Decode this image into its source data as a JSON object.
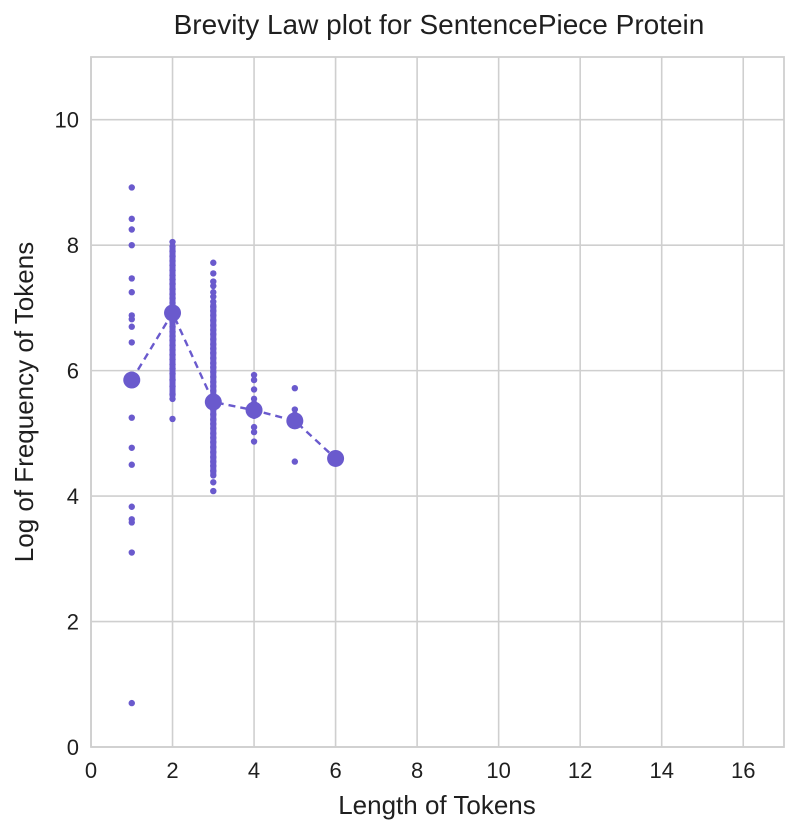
{
  "chart_data": {
    "type": "scatter",
    "title": "Brevity Law plot for SentencePiece Protein",
    "xlabel": "Length of Tokens",
    "ylabel": "Log of Frequency of Tokens",
    "xlim": [
      0,
      17
    ],
    "ylim": [
      0,
      11
    ],
    "xticks": [
      0,
      2,
      4,
      6,
      8,
      10,
      12,
      14,
      16
    ],
    "yticks": [
      0,
      2,
      4,
      6,
      8,
      10
    ],
    "grid": true,
    "color": "#6a5acd",
    "series": [
      {
        "name": "tokens",
        "kind": "scatter",
        "points": [
          [
            1,
            8.92
          ],
          [
            1,
            8.42
          ],
          [
            1,
            8.25
          ],
          [
            1,
            8.0
          ],
          [
            1,
            7.47
          ],
          [
            1,
            7.25
          ],
          [
            1,
            6.88
          ],
          [
            1,
            6.82
          ],
          [
            1,
            6.7
          ],
          [
            1,
            6.45
          ],
          [
            1,
            5.92
          ],
          [
            1,
            5.85
          ],
          [
            1,
            5.25
          ],
          [
            1,
            4.77
          ],
          [
            1,
            4.5
          ],
          [
            1,
            3.83
          ],
          [
            1,
            3.63
          ],
          [
            1,
            3.58
          ],
          [
            1,
            3.1
          ],
          [
            1,
            0.7
          ],
          [
            2,
            8.05
          ],
          [
            2,
            7.98
          ],
          [
            2,
            7.9
          ],
          [
            2,
            7.82
          ],
          [
            2,
            7.75
          ],
          [
            2,
            7.68
          ],
          [
            2,
            7.6
          ],
          [
            2,
            7.52
          ],
          [
            2,
            7.45
          ],
          [
            2,
            7.38
          ],
          [
            2,
            7.3
          ],
          [
            2,
            7.22
          ],
          [
            2,
            7.15
          ],
          [
            2,
            7.08
          ],
          [
            2,
            7.0
          ],
          [
            2,
            6.93
          ],
          [
            2,
            6.85
          ],
          [
            2,
            6.78
          ],
          [
            2,
            6.7
          ],
          [
            2,
            6.62
          ],
          [
            2,
            6.55
          ],
          [
            2,
            6.48
          ],
          [
            2,
            6.4
          ],
          [
            2,
            6.33
          ],
          [
            2,
            6.25
          ],
          [
            2,
            6.18
          ],
          [
            2,
            6.1
          ],
          [
            2,
            6.03
          ],
          [
            2,
            5.95
          ],
          [
            2,
            5.85
          ],
          [
            2,
            5.75
          ],
          [
            2,
            5.62
          ],
          [
            2,
            5.55
          ],
          [
            2,
            5.23
          ],
          [
            3,
            7.72
          ],
          [
            3,
            7.55
          ],
          [
            3,
            7.42
          ],
          [
            3,
            7.35
          ],
          [
            3,
            7.25
          ],
          [
            3,
            7.18
          ],
          [
            3,
            7.1
          ],
          [
            3,
            7.02
          ],
          [
            3,
            6.95
          ],
          [
            3,
            6.88
          ],
          [
            3,
            6.8
          ],
          [
            3,
            6.72
          ],
          [
            3,
            6.65
          ],
          [
            3,
            6.58
          ],
          [
            3,
            6.5
          ],
          [
            3,
            6.42
          ],
          [
            3,
            6.35
          ],
          [
            3,
            6.28
          ],
          [
            3,
            6.2
          ],
          [
            3,
            6.12
          ],
          [
            3,
            6.05
          ],
          [
            3,
            5.98
          ],
          [
            3,
            5.9
          ],
          [
            3,
            5.82
          ],
          [
            3,
            5.75
          ],
          [
            3,
            5.68
          ],
          [
            3,
            5.6
          ],
          [
            3,
            5.52
          ],
          [
            3,
            5.45
          ],
          [
            3,
            5.38
          ],
          [
            3,
            5.3
          ],
          [
            3,
            5.22
          ],
          [
            3,
            5.15
          ],
          [
            3,
            5.08
          ],
          [
            3,
            5.0
          ],
          [
            3,
            4.93
          ],
          [
            3,
            4.86
          ],
          [
            3,
            4.78
          ],
          [
            3,
            4.7
          ],
          [
            3,
            4.62
          ],
          [
            3,
            4.55
          ],
          [
            3,
            4.48
          ],
          [
            3,
            4.4
          ],
          [
            3,
            4.33
          ],
          [
            3,
            4.22
          ],
          [
            3,
            4.08
          ],
          [
            4,
            5.93
          ],
          [
            4,
            5.85
          ],
          [
            4,
            5.7
          ],
          [
            4,
            5.55
          ],
          [
            4,
            5.48
          ],
          [
            4,
            5.42
          ],
          [
            4,
            5.35
          ],
          [
            4,
            5.28
          ],
          [
            4,
            5.1
          ],
          [
            4,
            5.02
          ],
          [
            4,
            4.87
          ],
          [
            5,
            5.72
          ],
          [
            5,
            5.38
          ],
          [
            5,
            5.3
          ],
          [
            5,
            5.25
          ],
          [
            5,
            5.15
          ],
          [
            5,
            4.55
          ],
          [
            6,
            4.6
          ]
        ]
      },
      {
        "name": "mean",
        "kind": "line-markers",
        "points": [
          [
            1,
            5.85
          ],
          [
            2,
            6.92
          ],
          [
            3,
            5.5
          ],
          [
            4,
            5.37
          ],
          [
            5,
            5.2
          ],
          [
            6,
            4.6
          ]
        ]
      }
    ]
  }
}
